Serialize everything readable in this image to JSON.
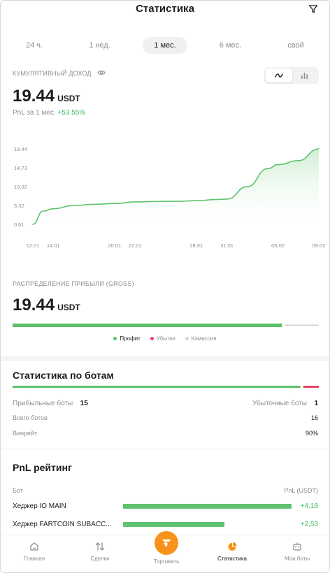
{
  "header": {
    "title": "Статистика",
    "filter_icon": "filter-icon"
  },
  "period_tabs": [
    {
      "label": "24 ч.",
      "active": false
    },
    {
      "label": "1 нед.",
      "active": false
    },
    {
      "label": "1 мес.",
      "active": true
    },
    {
      "label": "6 мес.",
      "active": false
    },
    {
      "label": "свой",
      "active": false
    }
  ],
  "cumulative": {
    "label": "КУМУЛЯТИВНЫЙ ДОХОД",
    "value": "19.44",
    "unit": "USDT",
    "pnl_label": "PnL за 1 мес.",
    "pnl_value": "+53.55%"
  },
  "chart_data": {
    "type": "area",
    "x": [
      "12.01",
      "13.01",
      "14.01",
      "16.01",
      "18.01",
      "20.01",
      "22.01",
      "24.01",
      "26.01",
      "28.01",
      "30.01",
      "31.01",
      "02.02",
      "04.02",
      "05.02",
      "07.02",
      "09.02"
    ],
    "y": [
      0.61,
      3.9,
      4.5,
      5.3,
      5.6,
      5.8,
      6.2,
      6.3,
      6.35,
      6.5,
      6.8,
      6.9,
      10.0,
      14.5,
      15.5,
      16.5,
      19.44
    ],
    "x_tick_labels": [
      "12.01",
      "14.01",
      "20.01",
      "22.01",
      "28.01",
      "31.01",
      "05.02",
      "09.02"
    ],
    "y_tick_labels": [
      "19.44",
      "14.73",
      "10.02",
      "5.32",
      "0.61"
    ],
    "ylim": [
      0.61,
      19.44
    ],
    "grid": false,
    "colors": {
      "line": "#5cc26a",
      "fill": "#e6f6e8"
    }
  },
  "distribution": {
    "label": "РАСПРЕДЕЛЕНИЕ ПРИБЫЛИ (GROSS)",
    "value": "19.44",
    "unit": "USDT",
    "profit_share": 0.88,
    "legend": [
      {
        "label": "Профит",
        "color": "#5cc26a",
        "muted": false
      },
      {
        "label": "Убытки",
        "color": "#e8436a",
        "muted": true
      },
      {
        "label": "Комиссия",
        "color": "#d4d4d8",
        "muted": true
      }
    ]
  },
  "bots_stats": {
    "title": "Статистика по ботам",
    "profitable_share": 0.94,
    "profitable_label": "Прибыльные боты",
    "profitable_value": "15",
    "losing_label": "Убыточные боты",
    "losing_value": "1",
    "total_label": "Всего ботов",
    "total_value": "16",
    "winrate_label": "Винрейт",
    "winrate_value": "90%"
  },
  "pnl_rating": {
    "title": "PnL рейтинг",
    "col_bot": "Бот",
    "col_pnl": "PnL (USDT)",
    "rows": [
      {
        "name": "Хеджер IO MAIN",
        "value": "+4,18",
        "share": 1.0
      },
      {
        "name": "Хеджер FARTCOIN SUBACC...",
        "value": "+2,53",
        "share": 0.6
      }
    ]
  },
  "bottom_nav": [
    {
      "label": "Главная",
      "icon": "home-icon",
      "active": false
    },
    {
      "label": "Сделки",
      "icon": "arrows-updown-icon",
      "active": false
    },
    {
      "label": "Торговать",
      "icon": "trade-logo-icon",
      "active": false
    },
    {
      "label": "Статистика",
      "icon": "pie-chart-icon",
      "active": true
    },
    {
      "label": "Мои боты",
      "icon": "bot-icon",
      "active": false
    }
  ],
  "colors": {
    "accent": "#f7931a",
    "positive": "#3fbf5f",
    "negative": "#e8436a"
  }
}
